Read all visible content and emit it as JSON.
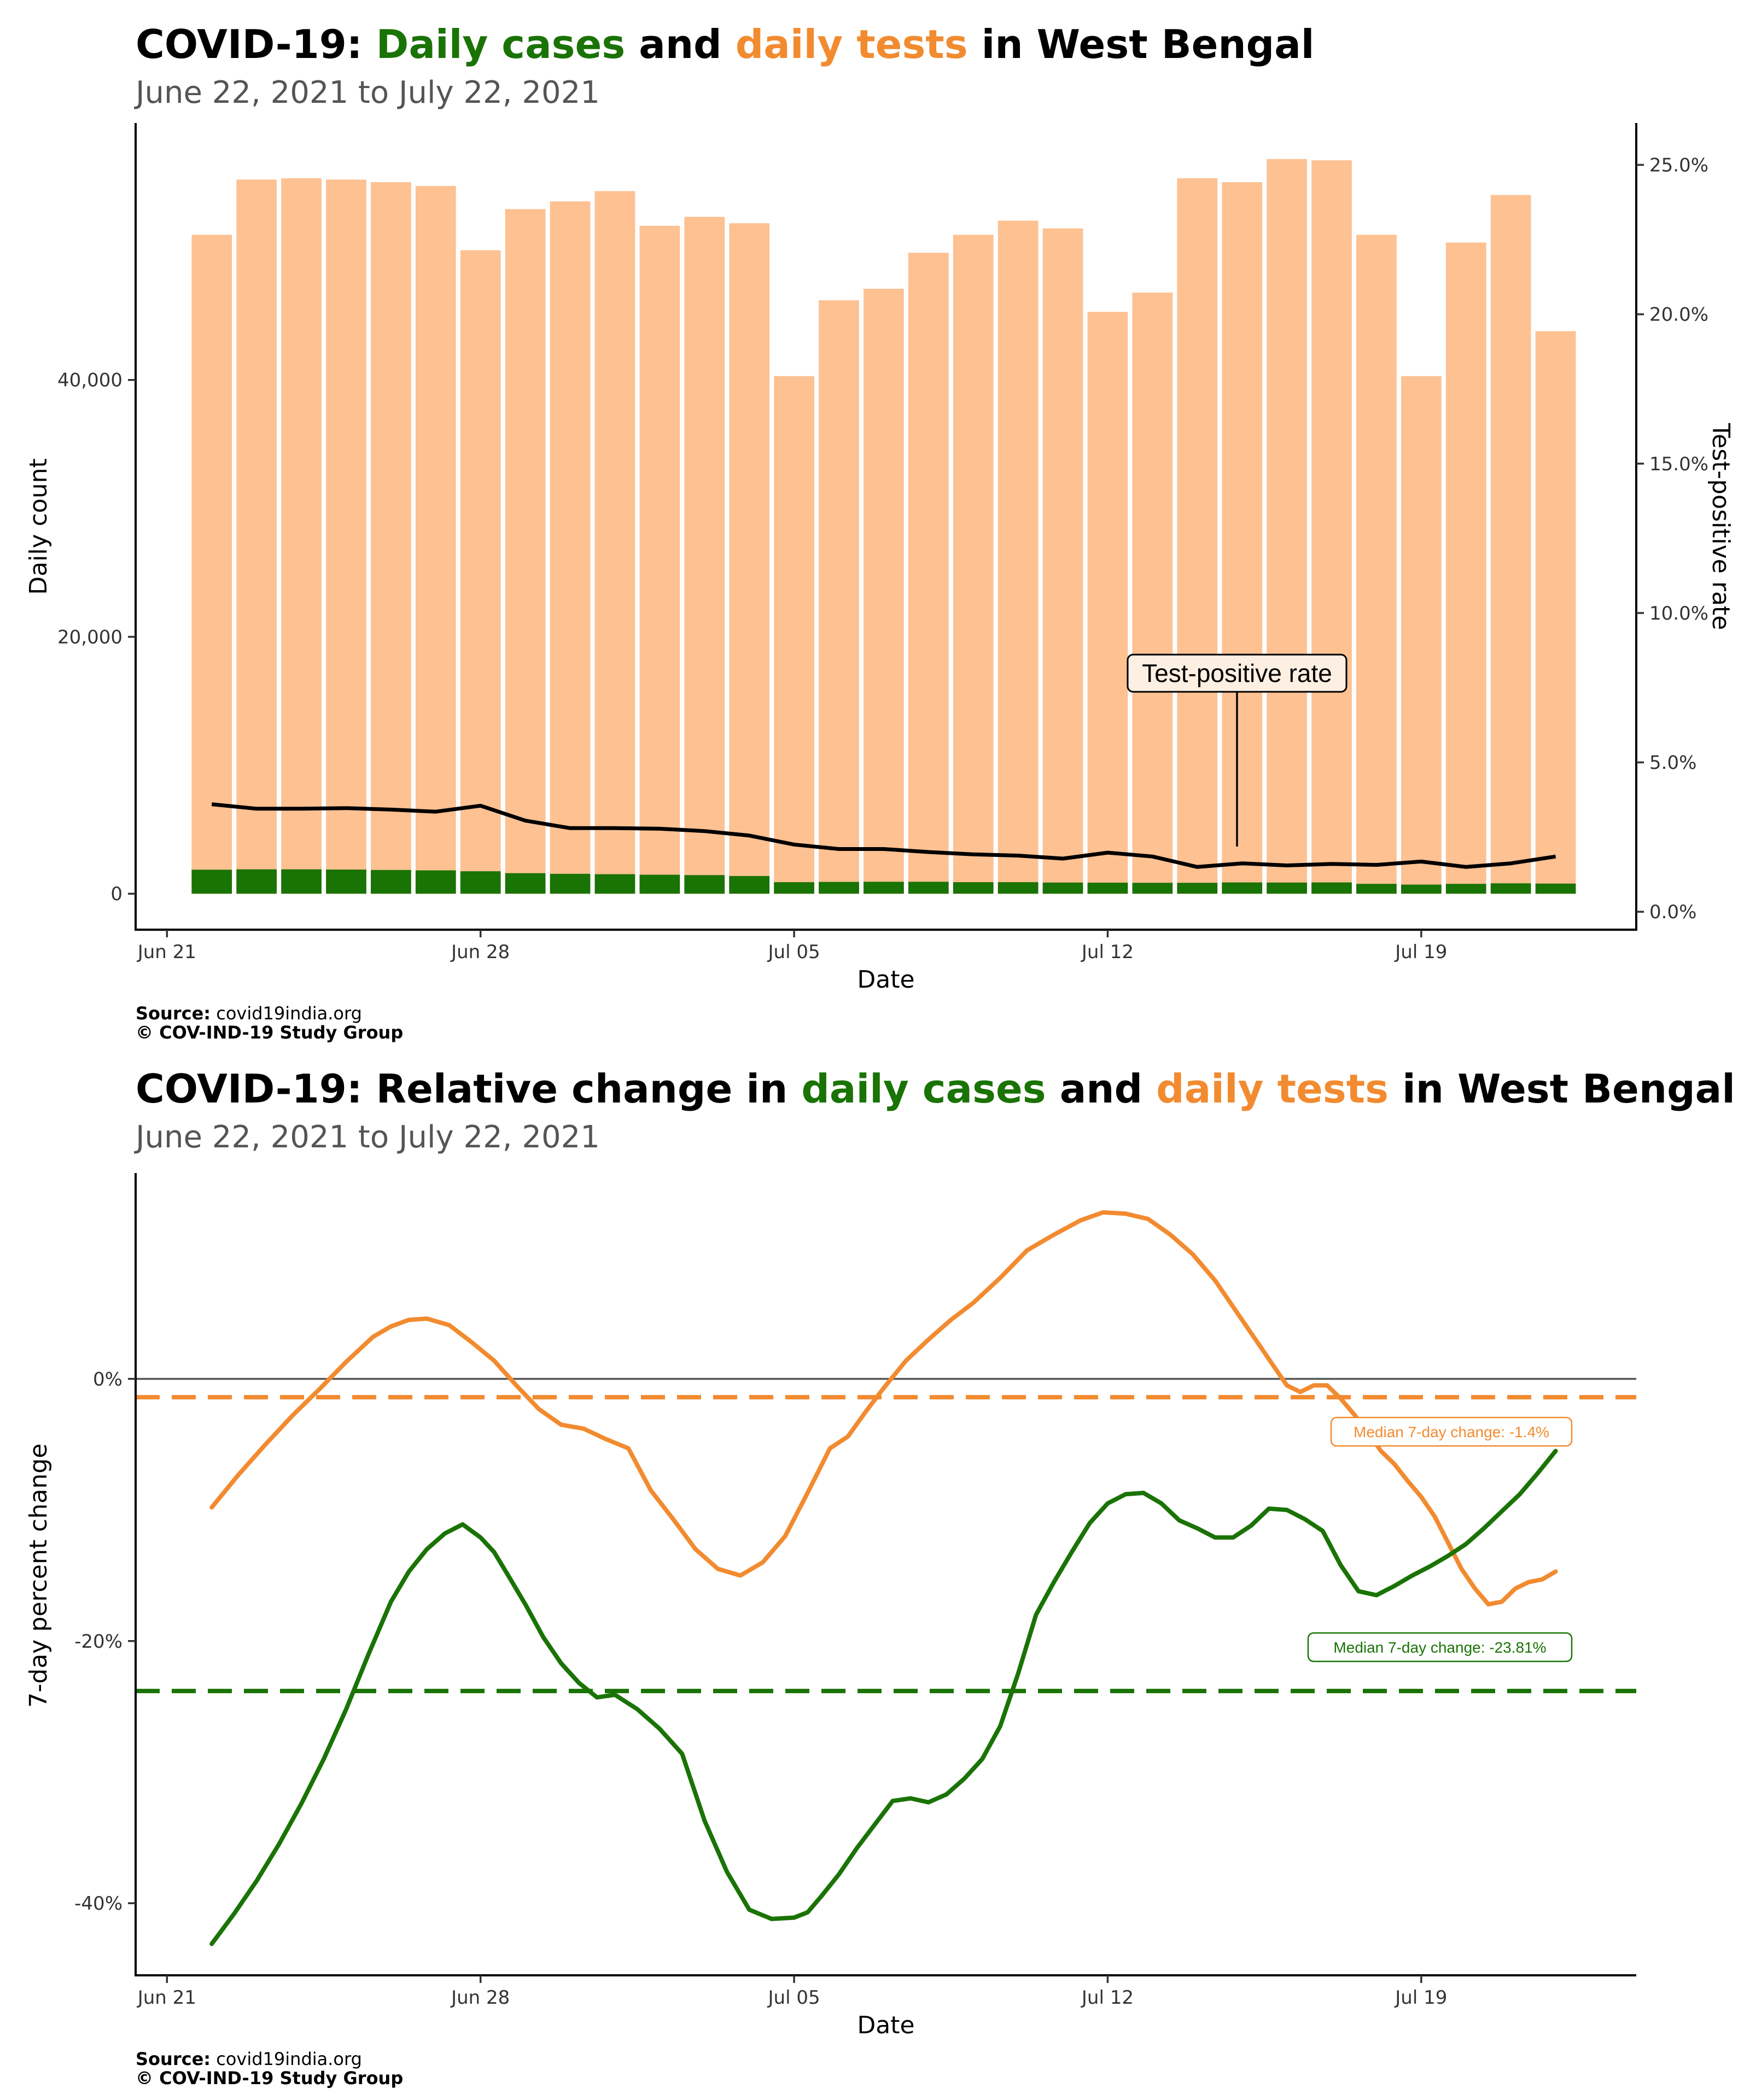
{
  "colors": {
    "cases": "#1a7305",
    "tests_text": "#f28b30",
    "tests_bar": "#fdc192",
    "tests_line": "#f28b30",
    "rate_line": "#000000",
    "subtitle": "#555555"
  },
  "chart1": {
    "title": {
      "prefix": "COVID-19: ",
      "cases_word": "Daily cases",
      "and": " and ",
      "tests_word": "daily tests",
      "suffix": " in West Bengal"
    },
    "subtitle": "June 22, 2021 to July 22, 2021",
    "xlabel": "Date",
    "ylabel_left": "Daily count",
    "ylabel_right": "Test-positive rate",
    "annotation": "Test-positive rate",
    "source_label": "Source:",
    "source_value": " covid19india.org",
    "copyright": "© COV-IND-19 Study Group"
  },
  "chart2": {
    "title": {
      "prefix": "COVID-19: Relative change in ",
      "cases_word": "daily cases",
      "and": " and ",
      "tests_word": "daily tests",
      "suffix": " in West Bengal"
    },
    "subtitle": "June 22, 2021 to July 22, 2021",
    "xlabel": "Date",
    "ylabel": "7-day percent change",
    "median_tests_label": "Median 7-day change: -1.4%",
    "median_cases_label": "Median 7-day change: -23.81%",
    "source_label": "Source:",
    "source_value": " covid19india.org",
    "copyright": "© COV-IND-19 Study Group"
  },
  "chart_data": [
    {
      "type": "bar",
      "title": "COVID-19: Daily cases and daily tests in West Bengal",
      "subtitle": "June 22, 2021 to July 22, 2021",
      "xlabel": "Date",
      "ylabel": "Daily count",
      "y2label": "Test-positive rate",
      "x_ticks": [
        "Jun 21",
        "Jun 28",
        "Jul 05",
        "Jul 12",
        "Jul 19"
      ],
      "x_tick_days": [
        -1,
        6,
        13,
        20,
        27
      ],
      "y_ticks": [
        0,
        20000,
        40000
      ],
      "y_tick_labels": [
        "0",
        "20,000",
        "40,000"
      ],
      "y2_ticks": [
        0,
        5,
        10,
        15,
        20,
        25
      ],
      "y2_tick_labels": [
        "0.0%",
        "5.0%",
        "10.0%",
        "15.0%",
        "20.0%",
        "25.0%"
      ],
      "xlim_days": [
        -1.7,
        31.8
      ],
      "ylim": [
        -2800,
        60000
      ],
      "y2lim": [
        -0.6,
        26.4
      ],
      "days": [
        0,
        1,
        2,
        3,
        4,
        5,
        6,
        7,
        8,
        9,
        10,
        11,
        12,
        13,
        14,
        15,
        16,
        17,
        18,
        19,
        20,
        21,
        22,
        23,
        24,
        25,
        26,
        27,
        28,
        29,
        30
      ],
      "series": [
        {
          "name": "daily tests",
          "values": [
            51300,
            55600,
            55700,
            55600,
            55400,
            55100,
            50100,
            53300,
            53900,
            54700,
            52000,
            52700,
            52200,
            40300,
            46200,
            47100,
            49900,
            51300,
            52400,
            51800,
            45300,
            46800,
            55700,
            55400,
            57200,
            57100,
            51300,
            40300,
            50700,
            54400,
            43800
          ]
        },
        {
          "name": "daily cases",
          "values": [
            1870,
            1900,
            1900,
            1880,
            1850,
            1820,
            1750,
            1600,
            1550,
            1520,
            1480,
            1450,
            1380,
            900,
            920,
            930,
            930,
            900,
            900,
            870,
            860,
            850,
            850,
            880,
            870,
            880,
            770,
            710,
            770,
            810,
            790
          ]
        },
        {
          "name": "Test-positive rate",
          "values": [
            3.6,
            3.45,
            3.45,
            3.47,
            3.42,
            3.35,
            3.55,
            3.05,
            2.8,
            2.8,
            2.78,
            2.7,
            2.55,
            2.25,
            2.1,
            2.1,
            2.0,
            1.92,
            1.88,
            1.78,
            1.98,
            1.85,
            1.5,
            1.62,
            1.55,
            1.6,
            1.57,
            1.68,
            1.5,
            1.62,
            1.85
          ]
        }
      ]
    },
    {
      "type": "line",
      "title": "COVID-19: Relative change in daily cases and daily tests in West Bengal",
      "subtitle": "June 22, 2021 to July 22, 2021",
      "xlabel": "Date",
      "ylabel": "7-day percent change",
      "x_ticks": [
        "Jun 21",
        "Jun 28",
        "Jul 05",
        "Jul 12",
        "Jul 19"
      ],
      "x_tick_days": [
        -1,
        6,
        13,
        20,
        27
      ],
      "y_ticks": [
        0,
        -20,
        -40
      ],
      "y_tick_labels": [
        "0%",
        "-20%",
        "-40%"
      ],
      "xlim_days": [
        -1.7,
        31.8
      ],
      "ylim": [
        -45.5,
        15.7
      ],
      "hline": 0,
      "medians": [
        {
          "name": "daily tests",
          "value": -1.4,
          "label": "Median 7-day change: -1.4%"
        },
        {
          "name": "daily cases",
          "value": -23.81,
          "label": "Median 7-day change: -23.81%"
        }
      ],
      "series": [
        {
          "name": "daily tests",
          "x": [
            0,
            0.6,
            1.2,
            1.8,
            2.4,
            3.0,
            3.6,
            4.0,
            4.4,
            4.8,
            5.3,
            5.8,
            6.3,
            6.8,
            7.3,
            7.8,
            8.3,
            8.8,
            9.3,
            9.8,
            10.3,
            10.8,
            11.3,
            11.8,
            12.3,
            12.8,
            13.3,
            13.8,
            14.2,
            14.6,
            15.0,
            15.5,
            16.0,
            16.5,
            17.0,
            17.6,
            18.2,
            18.8,
            19.4,
            19.9,
            20.4,
            20.9,
            21.4,
            21.9,
            22.4,
            22.9,
            23.4,
            23.7,
            24.0,
            24.3,
            24.6,
            24.9,
            25.2,
            25.5,
            25.8,
            26.1,
            26.4,
            26.7,
            27.0,
            27.3,
            27.6,
            27.9,
            28.2,
            28.5,
            28.8,
            29.1,
            29.4,
            29.7,
            30.0
          ],
          "values": [
            -9.8,
            -7.3,
            -5.0,
            -2.8,
            -0.8,
            1.3,
            3.2,
            4.0,
            4.5,
            4.6,
            4.1,
            2.8,
            1.4,
            -0.5,
            -2.3,
            -3.5,
            -3.8,
            -4.6,
            -5.3,
            -8.5,
            -10.7,
            -13.0,
            -14.5,
            -15.0,
            -14.0,
            -12.0,
            -8.7,
            -5.3,
            -4.4,
            -2.5,
            -0.7,
            1.4,
            3.0,
            4.5,
            5.8,
            7.7,
            9.8,
            11.0,
            12.1,
            12.7,
            12.6,
            12.2,
            11.0,
            9.5,
            7.5,
            5.0,
            2.5,
            1.0,
            -0.5,
            -1.0,
            -0.5,
            -0.5,
            -1.5,
            -2.7,
            -4.0,
            -5.5,
            -6.5,
            -7.8,
            -9.0,
            -10.5,
            -12.5,
            -14.5,
            -16.0,
            -17.2,
            -17.0,
            -16.0,
            -15.5,
            -15.3,
            -14.7
          ]
        },
        {
          "name": "daily cases",
          "x": [
            0,
            0.5,
            1.0,
            1.5,
            2.0,
            2.5,
            3.0,
            3.5,
            4.0,
            4.4,
            4.8,
            5.2,
            5.6,
            6.0,
            6.3,
            6.6,
            7.0,
            7.4,
            7.8,
            8.2,
            8.6,
            9.0,
            9.5,
            10.0,
            10.5,
            11.0,
            11.5,
            12.0,
            12.5,
            13.0,
            13.3,
            13.6,
            14.0,
            14.4,
            14.8,
            15.2,
            15.6,
            16.0,
            16.4,
            16.8,
            17.2,
            17.6,
            18.0,
            18.4,
            18.8,
            19.2,
            19.6,
            20.0,
            20.4,
            20.8,
            21.2,
            21.6,
            22.0,
            22.4,
            22.8,
            23.2,
            23.6,
            24.0,
            24.4,
            24.8,
            25.2,
            25.6,
            26.0,
            26.4,
            26.8,
            27.2,
            27.6,
            28.0,
            28.4,
            28.8,
            29.2,
            29.6,
            30.0
          ],
          "values": [
            -43.1,
            -40.8,
            -38.3,
            -35.5,
            -32.4,
            -29.0,
            -25.2,
            -21.0,
            -17.0,
            -14.7,
            -13.0,
            -11.8,
            -11.1,
            -12.1,
            -13.2,
            -14.9,
            -17.2,
            -19.7,
            -21.7,
            -23.2,
            -24.3,
            -24.1,
            -25.2,
            -26.7,
            -28.6,
            -33.7,
            -37.6,
            -40.5,
            -41.2,
            -41.1,
            -40.7,
            -39.5,
            -37.8,
            -35.8,
            -34.0,
            -32.2,
            -32.0,
            -32.3,
            -31.7,
            -30.5,
            -29.0,
            -26.5,
            -22.5,
            -18.0,
            -15.5,
            -13.2,
            -11.0,
            -9.5,
            -8.8,
            -8.7,
            -9.5,
            -10.8,
            -11.4,
            -12.1,
            -12.1,
            -11.2,
            -9.9,
            -10.0,
            -10.7,
            -11.6,
            -14.2,
            -16.2,
            -16.5,
            -15.8,
            -15.0,
            -14.3,
            -13.5,
            -12.6,
            -11.4,
            -10.1,
            -8.8,
            -7.2,
            -5.5
          ]
        }
      ]
    }
  ]
}
